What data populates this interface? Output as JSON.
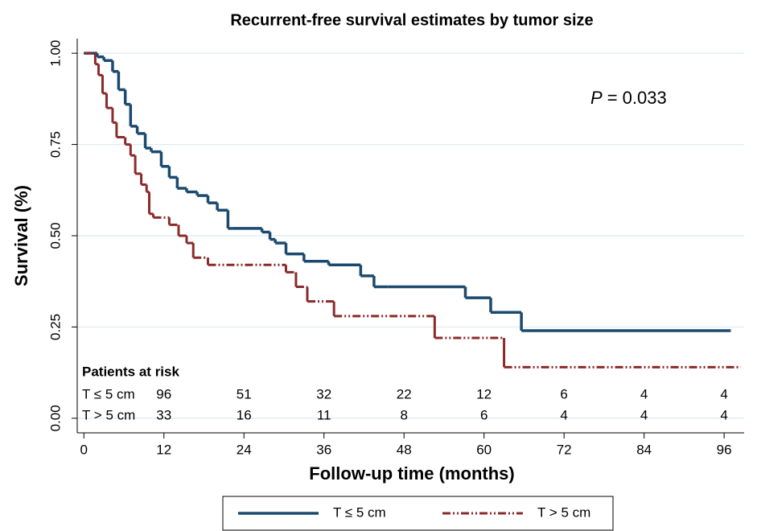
{
  "chart_data": {
    "type": "step",
    "title": "Recurrent-free survival estimates by tumor size",
    "x_label": "Follow-up time (months)",
    "y_label": "Survival (%)",
    "xlim": [
      -1,
      99
    ],
    "ylim": [
      -0.04,
      1.04
    ],
    "xticks": [
      0,
      12,
      24,
      36,
      48,
      60,
      72,
      84,
      96
    ],
    "yticks": [
      {
        "value": 0,
        "label": "0.00"
      },
      {
        "value": 0.25,
        "label": "0.25"
      },
      {
        "value": 0.5,
        "label": "0.50"
      },
      {
        "value": 0.75,
        "label": "0.75"
      },
      {
        "value": 1,
        "label": "1.00"
      }
    ],
    "grid": true,
    "p_value": {
      "symbol": "P",
      "text": "= 0.033"
    },
    "series": [
      {
        "name": "T ≤ 5 cm",
        "color": "#1b4a6e",
        "style": "solid",
        "x": [
          0,
          2,
          3,
          4.3,
          5.2,
          6.2,
          7,
          8,
          9.2,
          10.1,
          11.6,
          12.8,
          14,
          15.4,
          17,
          18.6,
          20,
          21.6,
          22.2,
          26.7,
          27.9,
          28.7,
          30.3,
          33,
          36.7,
          41.5,
          43.5,
          45.6,
          57.2,
          61,
          65.6,
          97
        ],
        "y": [
          1,
          0.99,
          0.98,
          0.95,
          0.9,
          0.86,
          0.8,
          0.78,
          0.74,
          0.73,
          0.69,
          0.66,
          0.63,
          0.62,
          0.61,
          0.59,
          0.57,
          0.52,
          0.52,
          0.51,
          0.49,
          0.48,
          0.45,
          0.43,
          0.42,
          0.39,
          0.36,
          0.36,
          0.33,
          0.29,
          0.24,
          0.24
        ]
      },
      {
        "name": "T > 5 cm",
        "color": "#8b2a2a",
        "style": "dashdot",
        "x": [
          0,
          1.7,
          2.2,
          2.8,
          3.4,
          4.3,
          4.9,
          6.2,
          7,
          7.7,
          8.6,
          9.4,
          9.8,
          10.4,
          12.8,
          14.2,
          15.4,
          16.4,
          18.6,
          29.7,
          30.3,
          31.8,
          33.5,
          37.5,
          52.6,
          63,
          98.4
        ],
        "y": [
          1,
          0.97,
          0.94,
          0.89,
          0.85,
          0.81,
          0.77,
          0.75,
          0.72,
          0.67,
          0.64,
          0.62,
          0.56,
          0.55,
          0.53,
          0.5,
          0.48,
          0.44,
          0.42,
          0.42,
          0.4,
          0.36,
          0.32,
          0.28,
          0.22,
          0.14,
          0.14
        ]
      }
    ],
    "risk_table": {
      "title": "Patients at risk",
      "rows": [
        {
          "label": "T ≤ 5 cm",
          "values": [
            96,
            51,
            32,
            22,
            12,
            6,
            4,
            4
          ]
        },
        {
          "label": "T > 5 cm",
          "values": [
            33,
            16,
            11,
            8,
            6,
            4,
            4,
            4
          ]
        }
      ]
    }
  }
}
